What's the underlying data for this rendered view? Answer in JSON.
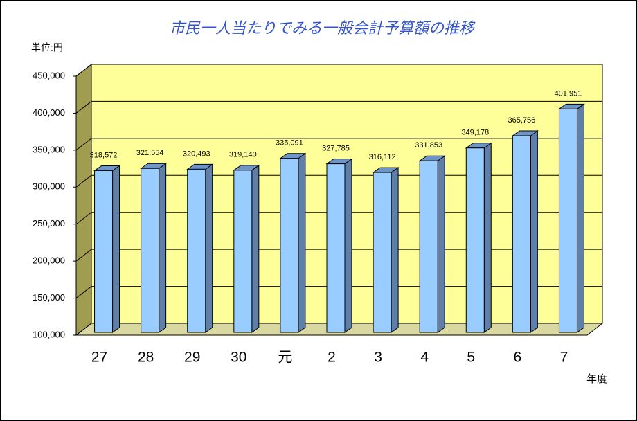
{
  "chart_data": {
    "type": "bar3d",
    "title": "市民一人当たりでみる一般会計予算額の推移",
    "y_unit_label": "単位:円",
    "x_label": "年度",
    "categories": [
      "27",
      "28",
      "29",
      "30",
      "元",
      "2",
      "3",
      "4",
      "5",
      "6",
      "7"
    ],
    "values": [
      318572,
      321554,
      320493,
      319140,
      335091,
      327785,
      316112,
      331853,
      349178,
      365756,
      401951
    ],
    "value_labels": [
      "318,572",
      "321,554",
      "320,493",
      "319,140",
      "335,091",
      "327,785",
      "316,112",
      "331,853",
      "349,178",
      "365,756",
      "401,951"
    ],
    "color": "#99ccff",
    "ylim": [
      100000,
      450000
    ],
    "yticks": [
      {
        "value": 100000,
        "label": "100,000"
      },
      {
        "value": 150000,
        "label": "150,000"
      },
      {
        "value": 200000,
        "label": "200,000"
      },
      {
        "value": 250000,
        "label": "250,000"
      },
      {
        "value": 300000,
        "label": "300,000"
      },
      {
        "value": 350000,
        "label": "350,000"
      },
      {
        "value": 400000,
        "label": "400,000"
      },
      {
        "value": 450000,
        "label": "450,000"
      }
    ],
    "grid": true
  }
}
